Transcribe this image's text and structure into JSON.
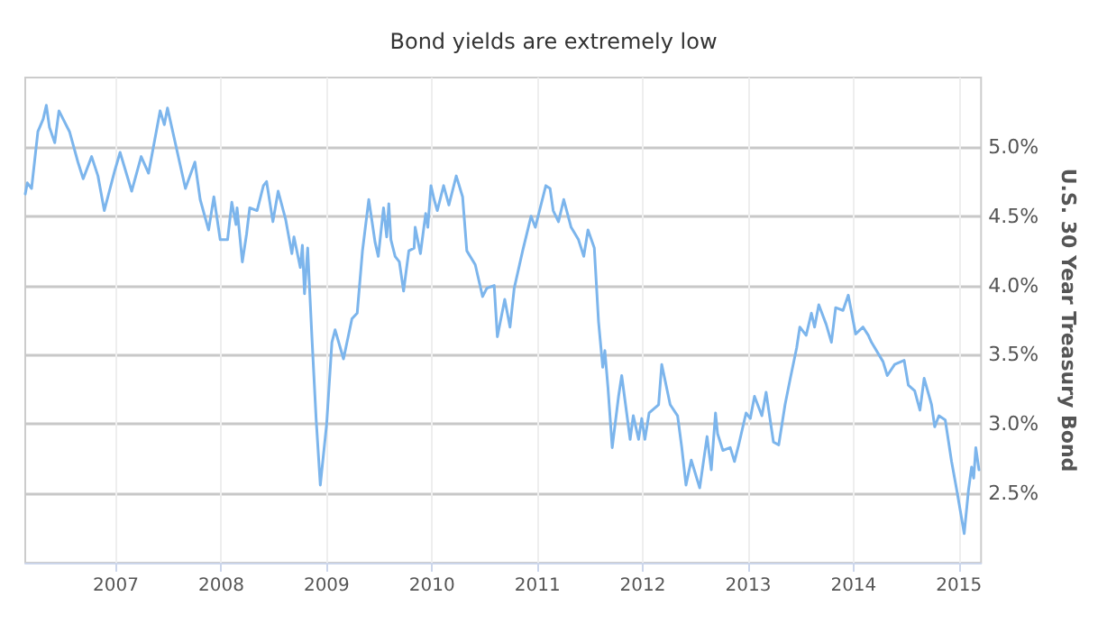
{
  "chart_data": {
    "type": "line",
    "title": "Bond yields are extremely low",
    "ylabel": "U.S. 30 Year Treasury Bond",
    "x": [
      2006.14,
      2006.16,
      2006.2,
      2006.26,
      2006.31,
      2006.34,
      2006.37,
      2006.42,
      2006.46,
      2006.56,
      2006.64,
      2006.69,
      2006.77,
      2006.83,
      2006.89,
      2006.99,
      2007.04,
      2007.15,
      2007.24,
      2007.31,
      2007.42,
      2007.46,
      2007.49,
      2007.66,
      2007.75,
      2007.8,
      2007.88,
      2007.93,
      2007.99,
      2008.06,
      2008.1,
      2008.14,
      2008.15,
      2008.2,
      2008.24,
      2008.27,
      2008.34,
      2008.4,
      2008.43,
      2008.49,
      2008.54,
      2008.61,
      2008.67,
      2008.69,
      2008.75,
      2008.77,
      2008.79,
      2008.82,
      2008.86,
      2008.9,
      2008.94,
      2009.0,
      2009.05,
      2009.08,
      2009.16,
      2009.24,
      2009.29,
      2009.34,
      2009.4,
      2009.46,
      2009.49,
      2009.54,
      2009.57,
      2009.59,
      2009.61,
      2009.65,
      2009.69,
      2009.73,
      2009.78,
      2009.83,
      2009.84,
      2009.89,
      2009.94,
      2009.96,
      2009.99,
      2010.02,
      2010.05,
      2010.11,
      2010.16,
      2010.23,
      2010.29,
      2010.33,
      2010.41,
      2010.48,
      2010.52,
      2010.59,
      2010.62,
      2010.69,
      2010.74,
      2010.78,
      2010.86,
      2010.94,
      2010.98,
      2011.02,
      2011.08,
      2011.12,
      2011.15,
      2011.2,
      2011.25,
      2011.32,
      2011.39,
      2011.44,
      2011.48,
      2011.54,
      2011.58,
      2011.62,
      2011.64,
      2011.67,
      2011.71,
      2011.77,
      2011.8,
      2011.88,
      2011.91,
      2011.96,
      2011.99,
      2012.02,
      2012.06,
      2012.15,
      2012.18,
      2012.26,
      2012.33,
      2012.37,
      2012.41,
      2012.46,
      2012.54,
      2012.61,
      2012.65,
      2012.69,
      2012.71,
      2012.76,
      2012.83,
      2012.87,
      2012.91,
      2012.98,
      2013.02,
      2013.06,
      2013.13,
      2013.17,
      2013.24,
      2013.29,
      2013.35,
      2013.4,
      2013.46,
      2013.49,
      2013.55,
      2013.6,
      2013.63,
      2013.67,
      2013.74,
      2013.79,
      2013.83,
      2013.9,
      2013.95,
      2014.02,
      2014.09,
      2014.14,
      2014.17,
      2014.28,
      2014.32,
      2014.39,
      2014.48,
      2014.52,
      2014.58,
      2014.63,
      2014.67,
      2014.74,
      2014.77,
      2014.81,
      2014.87,
      2014.93,
      2014.98,
      2015.05,
      2015.09,
      2015.12,
      2015.14,
      2015.16,
      2015.19
    ],
    "series": [
      {
        "color": "#7cb5ec",
        "values": [
          4.66,
          4.74,
          4.7,
          5.11,
          5.2,
          5.3,
          5.14,
          5.03,
          5.26,
          5.11,
          4.89,
          4.77,
          4.93,
          4.79,
          4.54,
          4.83,
          4.96,
          4.68,
          4.93,
          4.81,
          5.26,
          5.16,
          5.28,
          4.7,
          4.89,
          4.62,
          4.4,
          4.64,
          4.33,
          4.33,
          4.6,
          4.44,
          4.56,
          4.17,
          4.37,
          4.56,
          4.54,
          4.72,
          4.75,
          4.46,
          4.68,
          4.48,
          4.23,
          4.35,
          4.13,
          4.29,
          3.94,
          4.27,
          3.63,
          3.04,
          2.56,
          3.0,
          3.59,
          3.68,
          3.47,
          3.76,
          3.8,
          4.25,
          4.62,
          4.31,
          4.21,
          4.56,
          4.35,
          4.59,
          4.33,
          4.21,
          4.17,
          3.96,
          4.25,
          4.27,
          4.42,
          4.23,
          4.52,
          4.42,
          4.72,
          4.62,
          4.54,
          4.72,
          4.58,
          4.79,
          4.64,
          4.25,
          4.15,
          3.92,
          3.98,
          4.0,
          3.63,
          3.9,
          3.7,
          3.98,
          4.25,
          4.5,
          4.42,
          4.54,
          4.72,
          4.7,
          4.54,
          4.46,
          4.62,
          4.42,
          4.33,
          4.21,
          4.4,
          4.27,
          3.74,
          3.41,
          3.53,
          3.26,
          2.83,
          3.2,
          3.35,
          2.89,
          3.06,
          2.89,
          3.04,
          2.89,
          3.08,
          3.14,
          3.43,
          3.14,
          3.06,
          2.83,
          2.56,
          2.74,
          2.54,
          2.91,
          2.67,
          3.08,
          2.93,
          2.81,
          2.83,
          2.73,
          2.85,
          3.08,
          3.04,
          3.2,
          3.06,
          3.23,
          2.87,
          2.85,
          3.14,
          3.33,
          3.55,
          3.7,
          3.64,
          3.8,
          3.7,
          3.86,
          3.72,
          3.59,
          3.84,
          3.82,
          3.93,
          3.65,
          3.7,
          3.64,
          3.59,
          3.45,
          3.35,
          3.43,
          3.46,
          3.28,
          3.24,
          3.1,
          3.33,
          3.14,
          2.98,
          3.06,
          3.03,
          2.73,
          2.52,
          2.21,
          2.52,
          2.69,
          2.61,
          2.83,
          2.67
        ]
      }
    ],
    "xlim": [
      2006.14,
      2015.21
    ],
    "xticks": [
      2007,
      2008,
      2009,
      2010,
      2011,
      2012,
      2013,
      2014,
      2015
    ],
    "ylim": [
      2,
      5.5
    ],
    "yticks": [
      {
        "value": 2.5,
        "label": "2.5%"
      },
      {
        "value": 3,
        "label": "3.0%"
      },
      {
        "value": 3.5,
        "label": "3.5%"
      },
      {
        "value": 4,
        "label": "4.0%"
      },
      {
        "value": 4.5,
        "label": "4.5%"
      },
      {
        "value": 5,
        "label": "5.0%"
      }
    ],
    "grid": true,
    "marker": "none",
    "line_style": "solid"
  }
}
